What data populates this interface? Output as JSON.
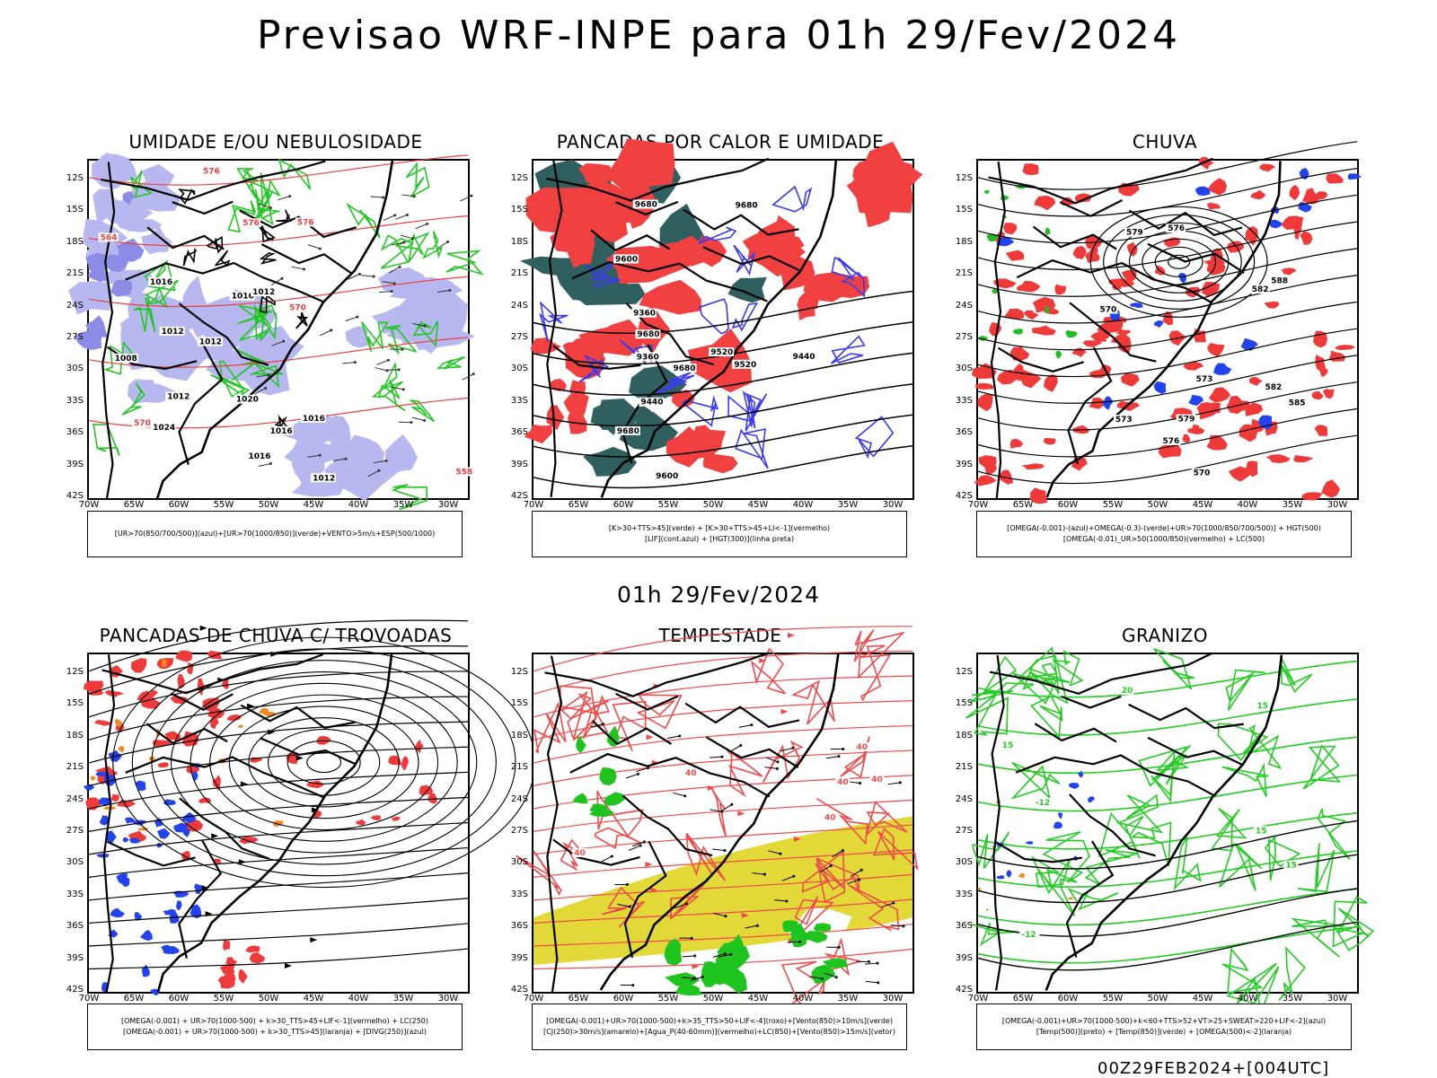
{
  "main_title": "Previsao WRF-INPE  para 01h 29/Fev/2024",
  "mid_title": "01h 29/Fev/2024",
  "footer": "00Z29FEB2024+[004UTC]",
  "lat_labels": [
    "12S",
    "15S",
    "18S",
    "21S",
    "24S",
    "27S",
    "30S",
    "33S",
    "36S",
    "39S",
    "42S"
  ],
  "lon_labels": [
    "70W",
    "65W",
    "60W",
    "55W",
    "50W",
    "45W",
    "40W",
    "35W",
    "30W"
  ],
  "panels": [
    {
      "title": "UMIDADE E/OU NEBULOSIDADE",
      "legend": [
        "[UR>70(850/700/500)](azul)+[UR>70(1000/850)](verde)+VENTO>5m/s+ESP(500/1000)"
      ],
      "contour_labels": [
        "1012",
        "1016",
        "1008",
        "1012",
        "1016",
        "1012",
        "1016",
        "1020",
        "1024",
        "1012",
        "1016",
        "1016",
        "1012",
        "576",
        "576",
        "570",
        "564",
        "558",
        "576",
        "570"
      ],
      "colors": {
        "fill": "#b8b8f0",
        "fill_dark": "#8c8ce6",
        "green": "#22c722",
        "red": "#e84040",
        "black": "#000000"
      }
    },
    {
      "title": "PANCADAS POR CALOR E UMIDADE",
      "legend": [
        "[K>30+TTS>45](verde)  +  [K>30+TTS>45+LI<-1](vermelho)",
        "[LIF](cont.azul)  +  [HGT(300)](linha preta)"
      ],
      "contour_labels": [
        "9680",
        "9680",
        "9680",
        "9680",
        "9600",
        "9520",
        "9600",
        "9440",
        "9360",
        "9520",
        "9440",
        "9360",
        "9680"
      ],
      "colors": {
        "red": "#f04040",
        "teal": "#2f5f5f",
        "blue": "#3a3af0",
        "black": "#000000"
      }
    },
    {
      "title": "CHUVA",
      "legend": [
        "[OMEGA(-0.001)-(azul)+OMEGA(-0.3)-(verde)+UR>70(1000/850/700/500)]  +  HGT(500)",
        "[OMEGA(-0.01)_UR>50(1000/850)(vermelho)  +  LC(500)"
      ],
      "contour_labels": [
        "588",
        "582",
        "579",
        "576",
        "573",
        "570",
        "576",
        "579",
        "582",
        "585",
        "573",
        "570"
      ],
      "colors": {
        "red": "#f03a3a",
        "blue": "#2244ee",
        "green": "#22bb22",
        "black": "#000000"
      }
    },
    {
      "title": "PANCADAS DE CHUVA C/ TROVOADAS",
      "legend": [
        "[OMEGA(-0.001)  +  UR>70(1000-500)  +  k>30_TTS>45+LIF<-1](vermelho)  +  LC(250)",
        "[OMEGA(-0.001)  +  UR>70(1000-500)  +  k>30_TTS>45](laranja)  +  [DIVG(250)](azul)"
      ],
      "contour_labels": [],
      "colors": {
        "red": "#f03a3a",
        "orange": "#f08a20",
        "blue": "#2244ee",
        "black": "#000000"
      }
    },
    {
      "title": "TEMPESTADE",
      "legend": [
        "[OMEGA(-0.001)+UR>70(1000-500)+k>35_TTS>50+LIF<-4](roxo)+[Vento(850)>10m/s](verde)",
        "[CJ(250)>30m/s](amarelo)+[Agua_P(40-60mm)](vermelho)+LC(850)+[Vento(850)>15m/s](vetor)"
      ],
      "contour_labels": [
        "40",
        "40",
        "40",
        "40",
        "40",
        "40"
      ],
      "colors": {
        "yellow": "#e2d838",
        "red": "#f04a4a",
        "green": "#1fc41f",
        "black": "#000000"
      }
    },
    {
      "title": "GRANIZO",
      "legend": [
        "[OMEGA(-0.001)+UR>70(1000-500)+k<60+TTS>52+VT>25+SWEAT>220+LIF<-2](azul)",
        "[Temp(500)](preto)  +  [Temp(850)](verde)  +  [OMEGA(500)<-2](laranja)"
      ],
      "contour_labels": [
        "15",
        "15",
        "15",
        "20",
        "-12",
        "-12",
        "15"
      ],
      "colors": {
        "green": "#22cc22",
        "blue": "#2244ee",
        "orange": "#f08a20",
        "black": "#000000"
      }
    }
  ]
}
